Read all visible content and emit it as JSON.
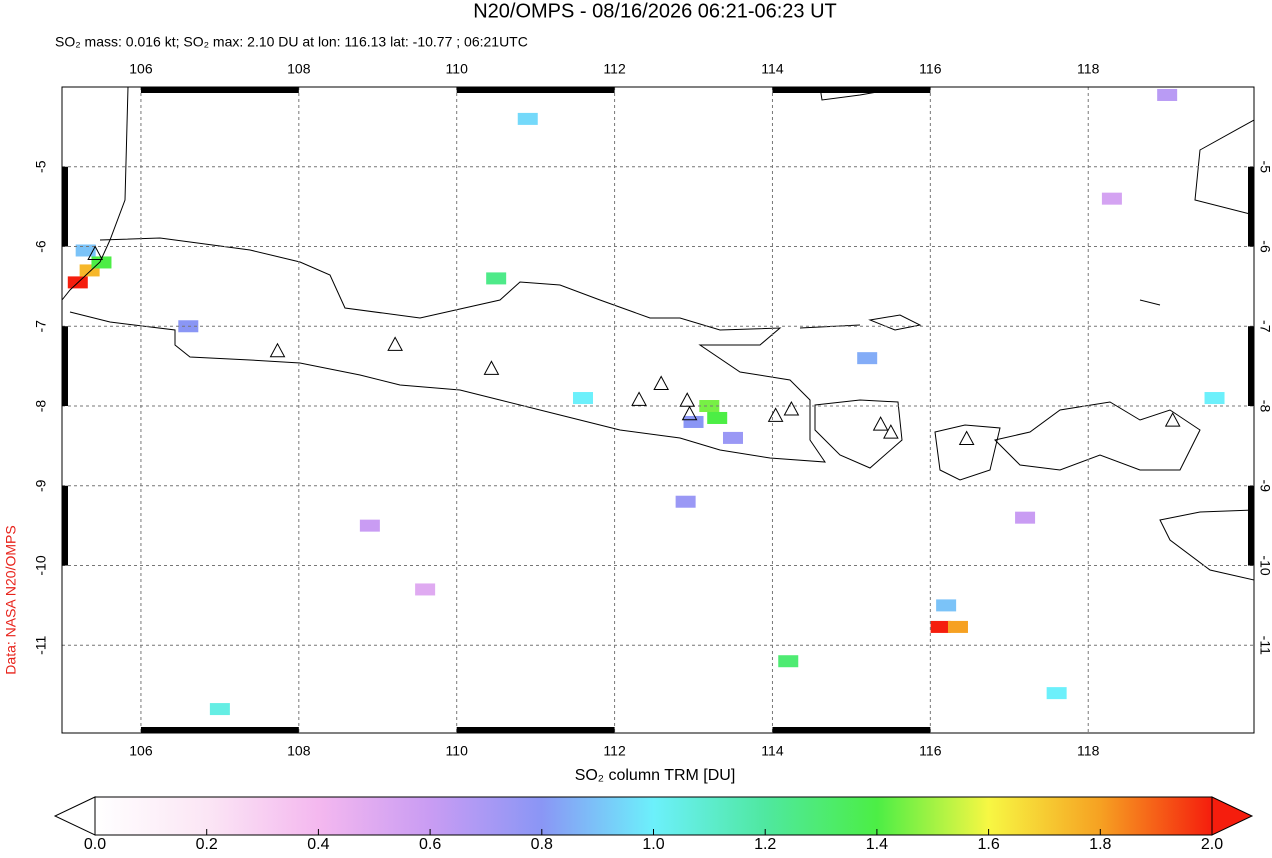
{
  "chart_data": {
    "type": "map",
    "title": "N20/OMPS - 08/16/2026 06:21-06:23 UT",
    "subtitle": "SO₂ mass: 0.016 kt; SO₂ max: 2.10 DU at lon: 116.13 lat: -10.77 ; 06:21UTC",
    "source": "Data: NASA N20/OMPS",
    "colorbar_label": "SO₂ column TRM [DU]",
    "xlim": [
      105,
      120.1
    ],
    "ylim": [
      -12.1,
      -4
    ],
    "xticks": [
      106,
      108,
      110,
      112,
      114,
      116,
      118
    ],
    "yticks": [
      -5,
      -6,
      -7,
      -8,
      -9,
      -10,
      -11
    ],
    "clim": [
      0,
      2
    ],
    "cticks": [
      {
        "value": 0,
        "label": "0.0"
      },
      {
        "value": 0.2,
        "label": "0.2"
      },
      {
        "value": 0.4,
        "label": "0.4"
      },
      {
        "value": 0.6,
        "label": "0.6"
      },
      {
        "value": 0.8,
        "label": "0.8"
      },
      {
        "value": 1,
        "label": "1.0"
      },
      {
        "value": 1.2,
        "label": "1.2"
      },
      {
        "value": 1.4,
        "label": "1.4"
      },
      {
        "value": 1.6,
        "label": "1.6"
      },
      {
        "value": 1.8,
        "label": "1.8"
      },
      {
        "value": 2,
        "label": "2.0"
      }
    ],
    "pixels": {
      "lon": [
        105.2,
        105.35,
        105.5,
        105.3,
        116.13,
        116.35,
        116.2,
        113.2,
        113.3,
        113.0,
        110.5,
        114.2,
        107.0,
        111.6,
        119.6,
        117.6,
        115.2,
        113.5,
        108.9,
        118.3,
        109.6,
        112.9,
        119.0,
        106.6,
        117.2,
        110.9
      ],
      "lat": [
        -6.45,
        -6.3,
        -6.2,
        -6.05,
        -10.77,
        -10.77,
        -10.5,
        -8.0,
        -8.15,
        -8.2,
        -6.4,
        -11.2,
        -11.8,
        -7.9,
        -7.9,
        -11.6,
        -7.4,
        -8.4,
        -9.5,
        -5.4,
        -10.3,
        -9.2,
        -4.1,
        -7.0,
        -9.4,
        -4.4
      ],
      "values": [
        2.0,
        1.75,
        1.4,
        0.9,
        2.1,
        1.8,
        0.9,
        1.45,
        1.4,
        0.8,
        1.25,
        1.3,
        1.05,
        1.0,
        1.0,
        1.0,
        0.85,
        0.75,
        0.6,
        0.55,
        0.5,
        0.75,
        0.65,
        0.8,
        0.6,
        0.95
      ]
    },
    "volcanoes": {
      "lon": [
        105.42,
        107.73,
        109.22,
        110.44,
        112.31,
        112.59,
        112.92,
        112.95,
        114.04,
        114.24,
        115.37,
        115.5,
        116.46,
        119.07
      ],
      "lat": [
        -6.1,
        -7.32,
        -7.24,
        -7.54,
        -7.93,
        -7.73,
        -7.94,
        -8.11,
        -8.13,
        -8.05,
        -8.24,
        -8.34,
        -8.42,
        -8.19
      ]
    }
  }
}
